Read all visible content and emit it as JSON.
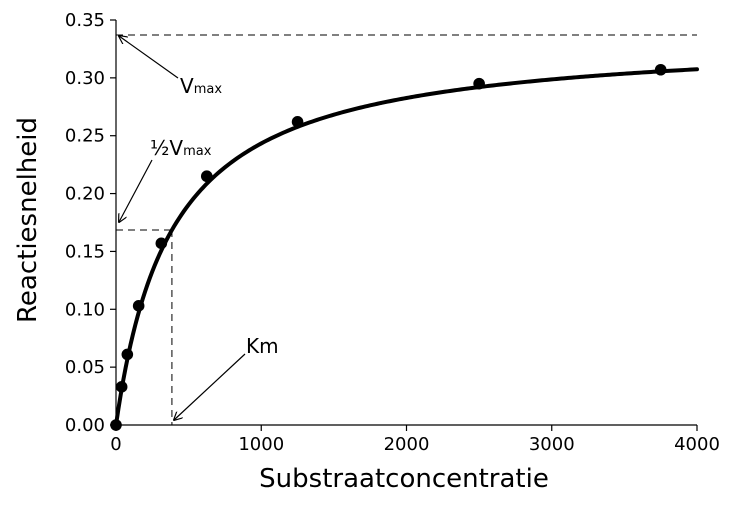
{
  "chart_data": {
    "type": "line",
    "xlabel": "Substraatconcentratie",
    "ylabel": "Reactiesnelheid",
    "xlim": [
      0,
      4000
    ],
    "ylim": [
      0,
      0.35
    ],
    "x_ticks": [
      0,
      1000,
      2000,
      3000,
      4000
    ],
    "x_tick_labels": [
      "0",
      "1000",
      "2000",
      "3000",
      "4000"
    ],
    "y_ticks": [
      0,
      0.05,
      0.1,
      0.15,
      0.2,
      0.25,
      0.3,
      0.35
    ],
    "y_tick_labels": [
      "0.00",
      "0.05",
      "0.10",
      "0.15",
      "0.20",
      "0.25",
      "0.30",
      "0.35"
    ],
    "grid": false,
    "series": [
      {
        "kind": "curve",
        "x_max": 4000,
        "color": "#000000"
      },
      {
        "kind": "points",
        "x": [
          0,
          39,
          78,
          156,
          312,
          625,
          1250,
          2500,
          3750
        ],
        "y": [
          0.0,
          0.033,
          0.061,
          0.103,
          0.157,
          0.215,
          0.262,
          0.295,
          0.307
        ],
        "color": "#000000"
      }
    ],
    "michaelis_menten": {
      "vmax": 0.337,
      "km": 385
    },
    "annotations": {
      "vmax": {
        "main": "V",
        "sub": "max",
        "y": 0.337
      },
      "half_vmax": {
        "prefix": "½V",
        "sub": "max",
        "y": 0.1685
      },
      "km": {
        "label": "Km",
        "x": 385
      }
    }
  }
}
